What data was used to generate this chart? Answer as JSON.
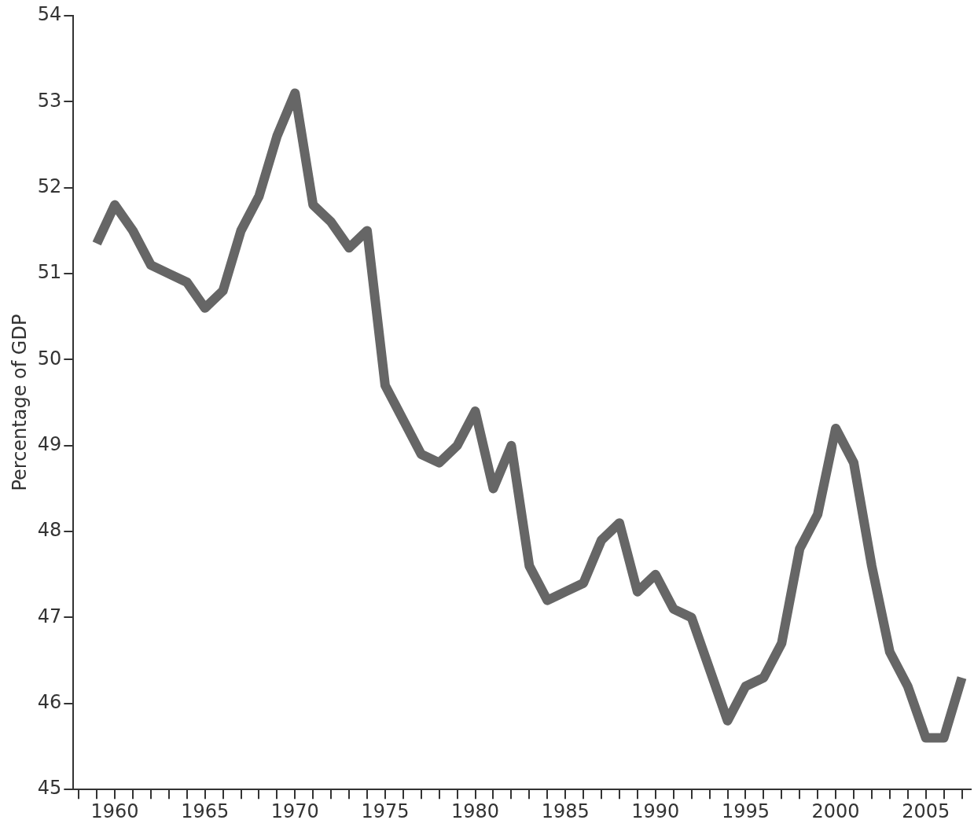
{
  "chart_data": {
    "type": "line",
    "ylabel": "Percentage of GDP",
    "x": [
      1959,
      1960,
      1961,
      1962,
      1963,
      1964,
      1965,
      1966,
      1967,
      1968,
      1969,
      1970,
      1971,
      1972,
      1973,
      1974,
      1975,
      1976,
      1977,
      1978,
      1979,
      1980,
      1981,
      1982,
      1983,
      1984,
      1985,
      1986,
      1987,
      1988,
      1989,
      1990,
      1991,
      1992,
      1993,
      1994,
      1995,
      1996,
      1997,
      1998,
      1999,
      2000,
      2001,
      2002,
      2003,
      2004,
      2005,
      2006,
      2007
    ],
    "series": [
      {
        "color": "#666666",
        "values": [
          51.35,
          51.8,
          51.5,
          51.1,
          51.0,
          50.9,
          50.6,
          50.8,
          51.5,
          51.9,
          52.6,
          53.1,
          51.8,
          51.6,
          51.3,
          51.5,
          49.7,
          49.3,
          48.9,
          48.8,
          49.0,
          49.4,
          48.5,
          49.0,
          47.6,
          47.2,
          47.3,
          47.4,
          47.9,
          48.1,
          47.3,
          47.5,
          47.1,
          47.0,
          46.4,
          45.8,
          46.2,
          46.3,
          46.7,
          47.8,
          48.2,
          49.2,
          48.8,
          47.6,
          46.6,
          46.2,
          45.6,
          45.6,
          46.3
        ]
      }
    ],
    "xlim": [
      1957.7,
      2007.5
    ],
    "xticks": [
      {
        "value": 1958,
        "label": null
      },
      {
        "value": 1959,
        "label": null
      },
      1960,
      {
        "value": 1961,
        "label": null
      },
      {
        "value": 1962,
        "label": null
      },
      {
        "value": 1963,
        "label": null
      },
      {
        "value": 1964,
        "label": null
      },
      1965,
      {
        "value": 1966,
        "label": null
      },
      {
        "value": 1967,
        "label": null
      },
      {
        "value": 1968,
        "label": null
      },
      {
        "value": 1969,
        "label": null
      },
      1970,
      {
        "value": 1971,
        "label": null
      },
      {
        "value": 1972,
        "label": null
      },
      {
        "value": 1973,
        "label": null
      },
      {
        "value": 1974,
        "label": null
      },
      1975,
      {
        "value": 1976,
        "label": null
      },
      {
        "value": 1977,
        "label": null
      },
      {
        "value": 1978,
        "label": null
      },
      {
        "value": 1979,
        "label": null
      },
      1980,
      {
        "value": 1981,
        "label": null
      },
      {
        "value": 1982,
        "label": null
      },
      {
        "value": 1983,
        "label": null
      },
      {
        "value": 1984,
        "label": null
      },
      1985,
      {
        "value": 1986,
        "label": null
      },
      {
        "value": 1987,
        "label": null
      },
      {
        "value": 1988,
        "label": null
      },
      {
        "value": 1989,
        "label": null
      },
      1990,
      {
        "value": 1991,
        "label": null
      },
      {
        "value": 1992,
        "label": null
      },
      {
        "value": 1993,
        "label": null
      },
      {
        "value": 1994,
        "label": null
      },
      1995,
      {
        "value": 1996,
        "label": null
      },
      {
        "value": 1997,
        "label": null
      },
      {
        "value": 1998,
        "label": null
      },
      {
        "value": 1999,
        "label": null
      },
      2000,
      {
        "value": 2001,
        "label": null
      },
      {
        "value": 2002,
        "label": null
      },
      {
        "value": 2003,
        "label": null
      },
      {
        "value": 2004,
        "label": null
      },
      2005,
      {
        "value": 2006,
        "label": null
      },
      {
        "value": 2007,
        "label": null
      }
    ],
    "ylim": [
      45,
      54
    ],
    "yticks": [
      45,
      46,
      47,
      48,
      49,
      50,
      51,
      52,
      53,
      54
    ],
    "grid": false,
    "legend": false,
    "marker": "none",
    "line_style": "solid"
  }
}
